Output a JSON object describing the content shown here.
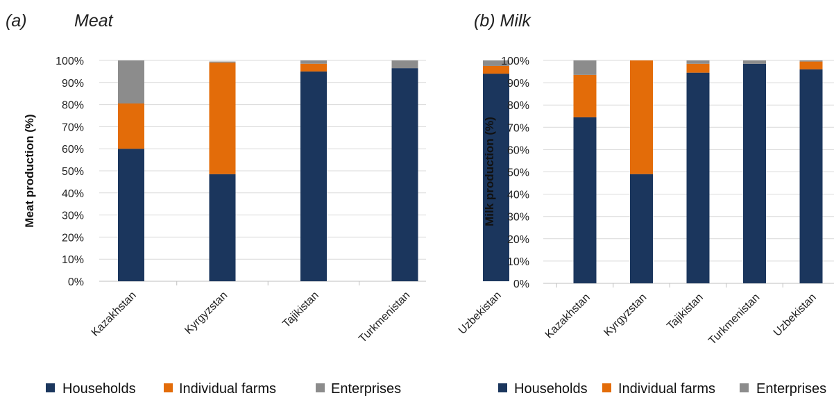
{
  "panels": {
    "a": {
      "letter": "(a)",
      "name": "Meat"
    },
    "b": {
      "label": "(b) Milk"
    }
  },
  "colors": {
    "Households": "#1b365d",
    "Individual farms": "#e36c09",
    "Enterprises": "#8c8c8c"
  },
  "chart_data": [
    {
      "type": "bar",
      "stacked": true,
      "title": "(a) Meat",
      "xlabel": "",
      "ylabel": "Meat production (%)",
      "ylim": [
        0,
        100
      ],
      "yticks": [
        "0%",
        "10%",
        "20%",
        "30%",
        "40%",
        "50%",
        "60%",
        "70%",
        "80%",
        "90%",
        "100%"
      ],
      "categories": [
        "Kazakhstan",
        "Kyrgyzstan",
        "Tajikistan",
        "Turkmenistan",
        "Uzbekistan"
      ],
      "series": [
        {
          "name": "Households",
          "values": [
            60,
            48.5,
            95,
            96.5,
            94
          ]
        },
        {
          "name": "Individual farms",
          "values": [
            20.5,
            50.5,
            3.5,
            0,
            3.5
          ]
        },
        {
          "name": "Enterprises",
          "values": [
            19.5,
            0.5,
            1.5,
            3.5,
            2.5
          ]
        }
      ],
      "legend": "bottom"
    },
    {
      "type": "bar",
      "stacked": true,
      "title": "(b) Milk",
      "xlabel": "",
      "ylabel": "Milk production (%)",
      "ylim": [
        0,
        100
      ],
      "yticks": [
        "0%",
        "10%",
        "20%",
        "30%",
        "40%",
        "50%",
        "60%",
        "70%",
        "80%",
        "90%",
        "100%"
      ],
      "categories": [
        "Kazakhstan",
        "Kyrgyzstan",
        "Tajikistan",
        "Turkmenistan",
        "Uzbekistan"
      ],
      "series": [
        {
          "name": "Households",
          "values": [
            74.5,
            49,
            94.5,
            98.5,
            96
          ]
        },
        {
          "name": "Individual farms",
          "values": [
            19,
            51,
            4,
            0,
            3.5
          ]
        },
        {
          "name": "Enterprises",
          "values": [
            6.5,
            0,
            1.5,
            1.5,
            0.5
          ]
        }
      ],
      "legend": "bottom"
    }
  ]
}
